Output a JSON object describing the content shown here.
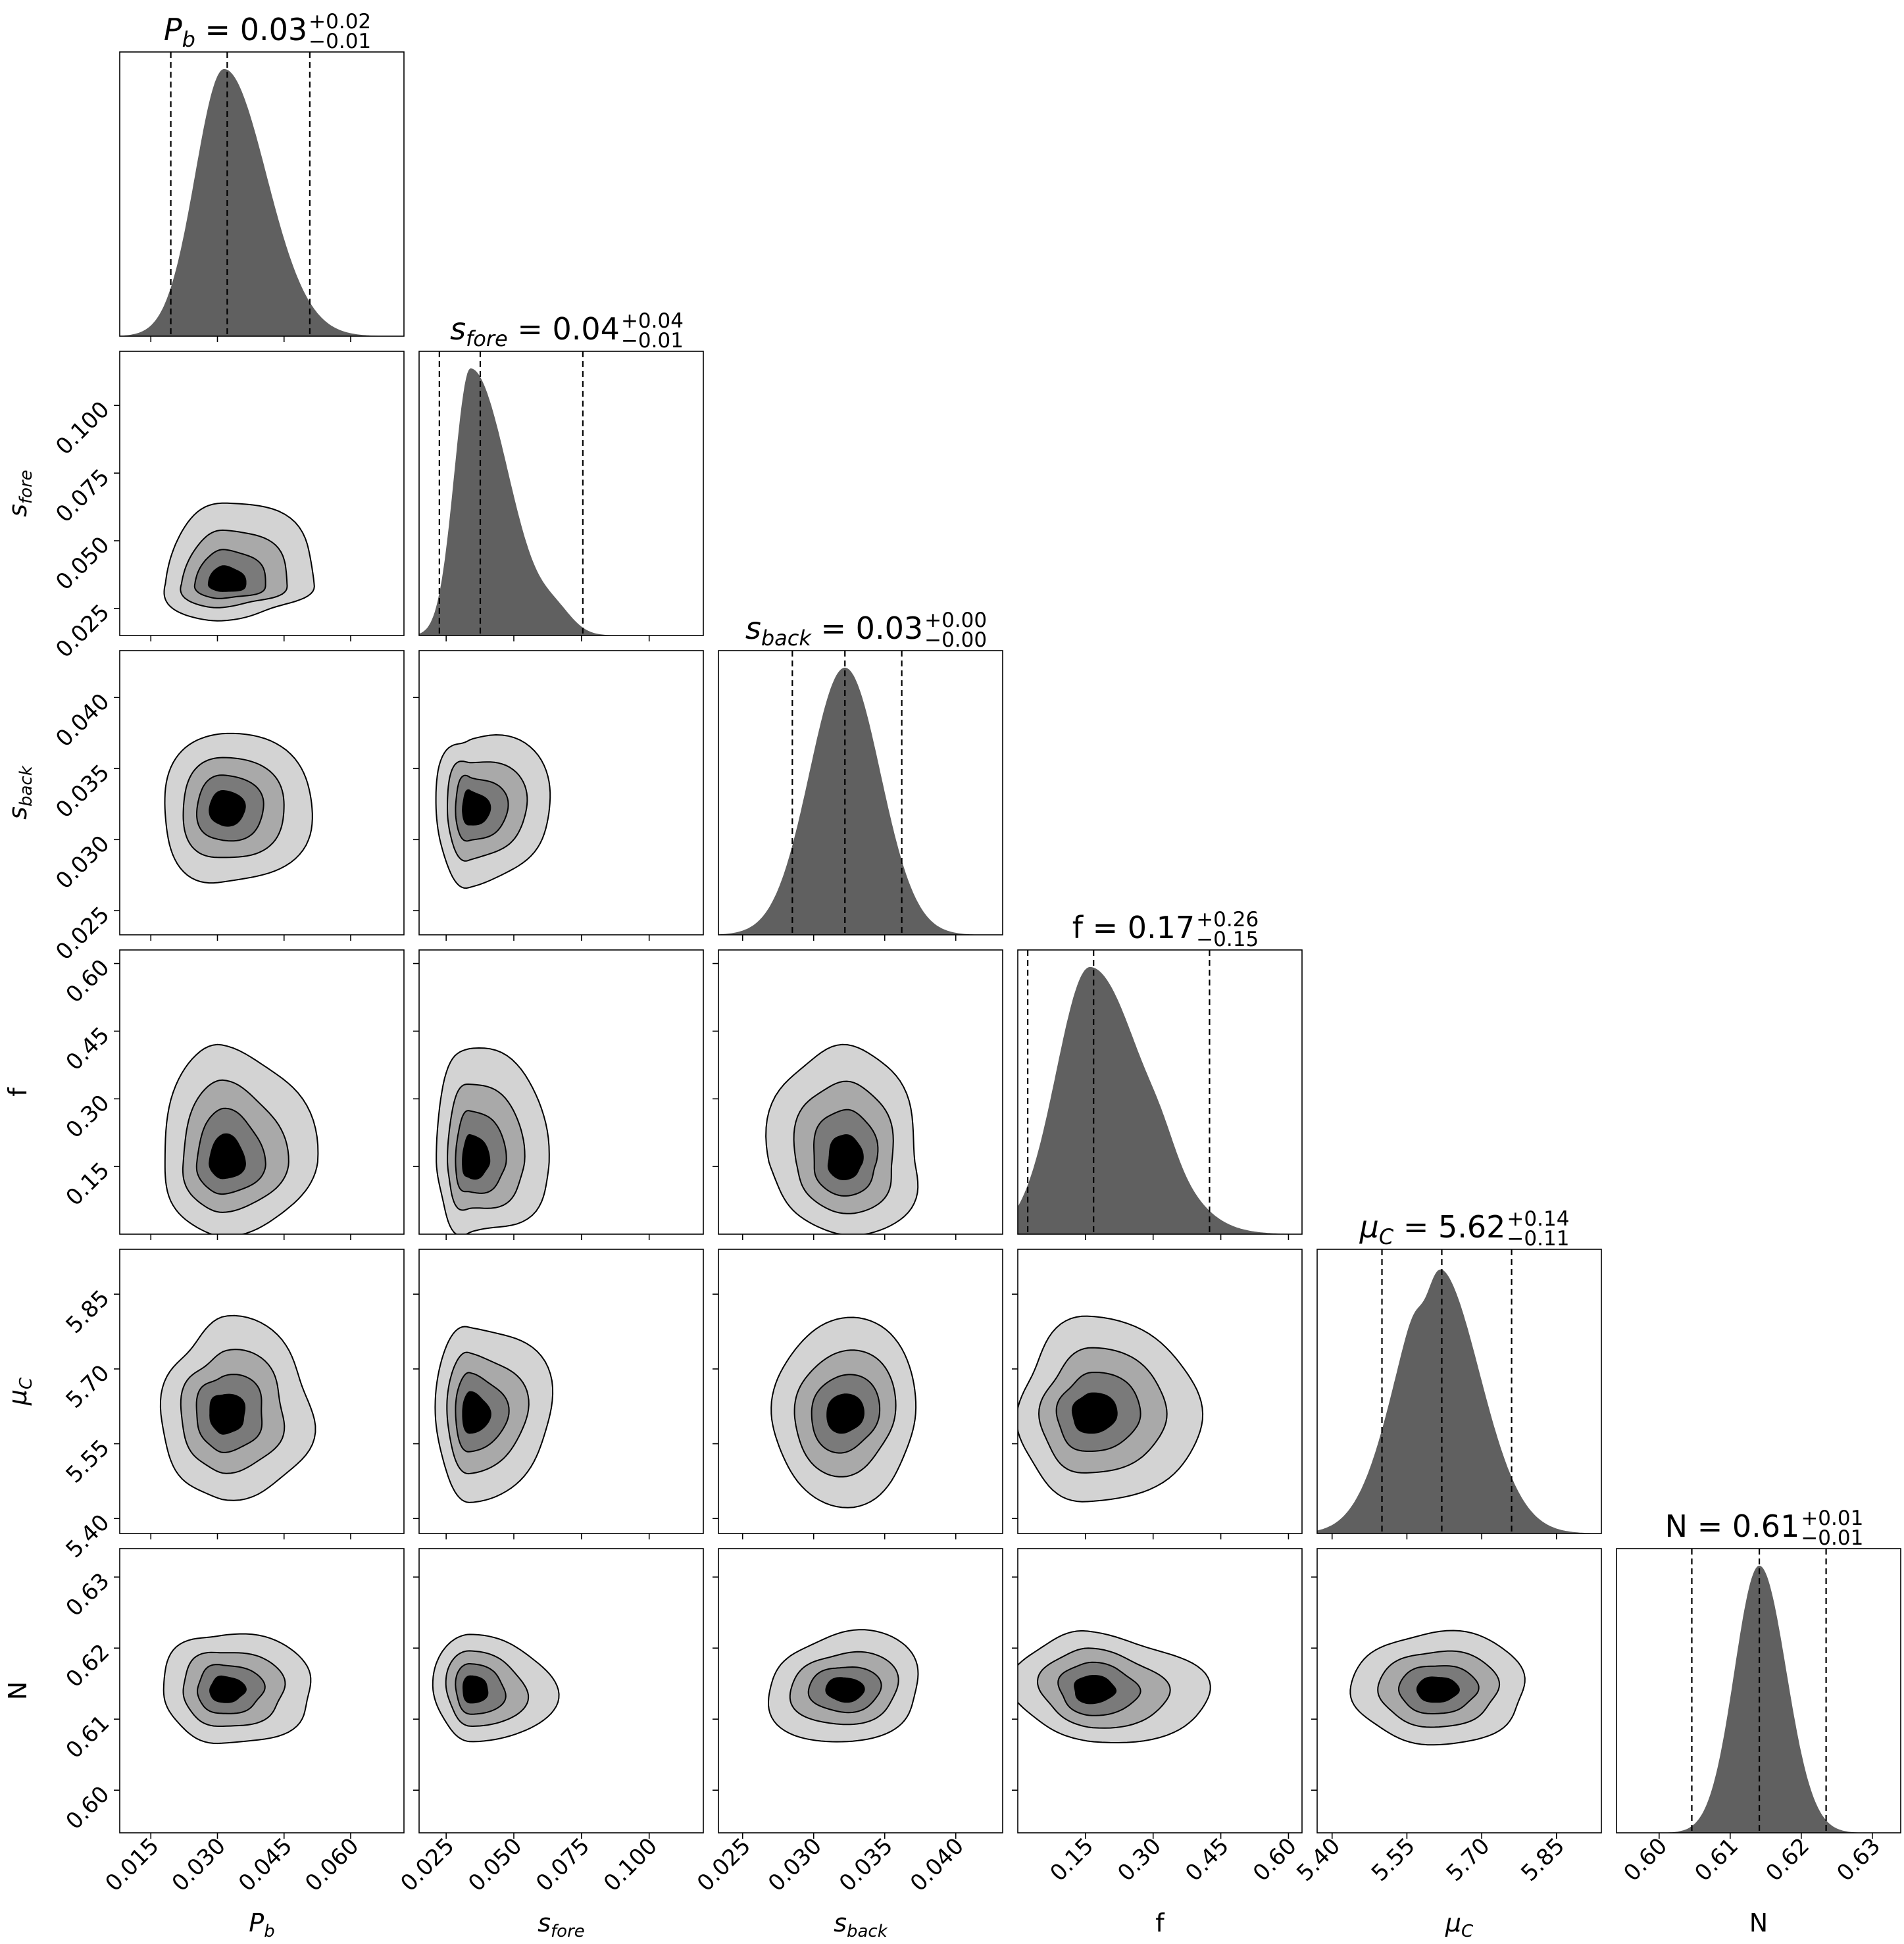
{
  "chart_data": {
    "type": "corner",
    "parameters": [
      {
        "key": "Pb",
        "label": "P",
        "label_sub": "b",
        "label_style": "italic",
        "median": "0.03",
        "plus": "+0.02",
        "minus": "−0.01",
        "range": [
          0.008,
          0.072
        ],
        "ticks": [
          "0.015",
          "0.030",
          "0.045",
          "0.060"
        ],
        "tick_values": [
          0.015,
          0.03,
          0.045,
          0.06
        ],
        "quantiles": [
          0.0195,
          0.0322,
          0.0508
        ],
        "peak": 0.0315,
        "sigma_left": 0.0065,
        "sigma_right": 0.0095
      },
      {
        "key": "sfore",
        "label": "s",
        "label_sub": "fore",
        "label_style": "italic",
        "median": "0.04",
        "plus": "+0.04",
        "minus": "−0.01",
        "range": [
          0.015,
          0.12
        ],
        "ticks": [
          "0.025",
          "0.050",
          "0.075",
          "0.100"
        ],
        "tick_values": [
          0.025,
          0.05,
          0.075,
          0.1
        ],
        "quantiles": [
          0.0225,
          0.0376,
          0.0755
        ],
        "peak": 0.034,
        "sigma_left": 0.006,
        "sigma_right": 0.014
      },
      {
        "key": "sback",
        "label": "s",
        "label_sub": "back",
        "label_style": "italic",
        "median": "0.03",
        "plus": "+0.00",
        "minus": "−0.00",
        "range": [
          0.0233,
          0.0433
        ],
        "ticks": [
          "0.025",
          "0.030",
          "0.035",
          "0.040"
        ],
        "tick_values": [
          0.025,
          0.03,
          0.035,
          0.04
        ],
        "quantiles": [
          0.0285,
          0.0322,
          0.0362
        ],
        "peak": 0.0322,
        "sigma_left": 0.0025,
        "sigma_right": 0.0025
      },
      {
        "key": "f",
        "label": "f",
        "label_sub": "",
        "label_style": "normal",
        "median": "0.17",
        "plus": "+0.26",
        "minus": "−0.15",
        "range": [
          0.0,
          0.63
        ],
        "ticks": [
          "0.15",
          "0.30",
          "0.45",
          "0.60"
        ],
        "tick_values": [
          0.15,
          0.3,
          0.45,
          0.6
        ],
        "quantiles": [
          0.022,
          0.168,
          0.425
        ],
        "peak": 0.16,
        "sigma_left": 0.075,
        "sigma_right": 0.12
      },
      {
        "key": "muC",
        "label": "μ",
        "label_sub": "C",
        "label_style": "italic",
        "median": "5.62",
        "plus": "+0.14",
        "minus": "−0.11",
        "range": [
          5.37,
          5.94
        ],
        "ticks": [
          "5.40",
          "5.55",
          "5.70",
          "5.85"
        ],
        "tick_values": [
          5.4,
          5.55,
          5.7,
          5.85
        ],
        "quantiles": [
          5.5,
          5.62,
          5.76
        ],
        "peak": 5.61,
        "sigma_left": 0.08,
        "sigma_right": 0.085
      },
      {
        "key": "N",
        "label": "N",
        "label_sub": "",
        "label_style": "normal",
        "median": "0.61",
        "plus": "+0.01",
        "minus": "−0.01",
        "range": [
          0.594,
          0.634
        ],
        "ticks": [
          "0.60",
          "0.61",
          "0.62",
          "0.63"
        ],
        "tick_values": [
          0.6,
          0.61,
          0.62,
          0.63
        ],
        "quantiles": [
          0.6046,
          0.6141,
          0.6235
        ],
        "peak": 0.6141,
        "sigma_left": 0.0035,
        "sigma_right": 0.0038
      }
    ],
    "contour_levels": 4,
    "contour_fills": [
      "#d3d3d3",
      "#a9a9a9",
      "#7a7a7a",
      "#000000"
    ],
    "histogram_fill": "#606060",
    "quantile_line_style": "dashed",
    "layout": "lower-triangle"
  }
}
